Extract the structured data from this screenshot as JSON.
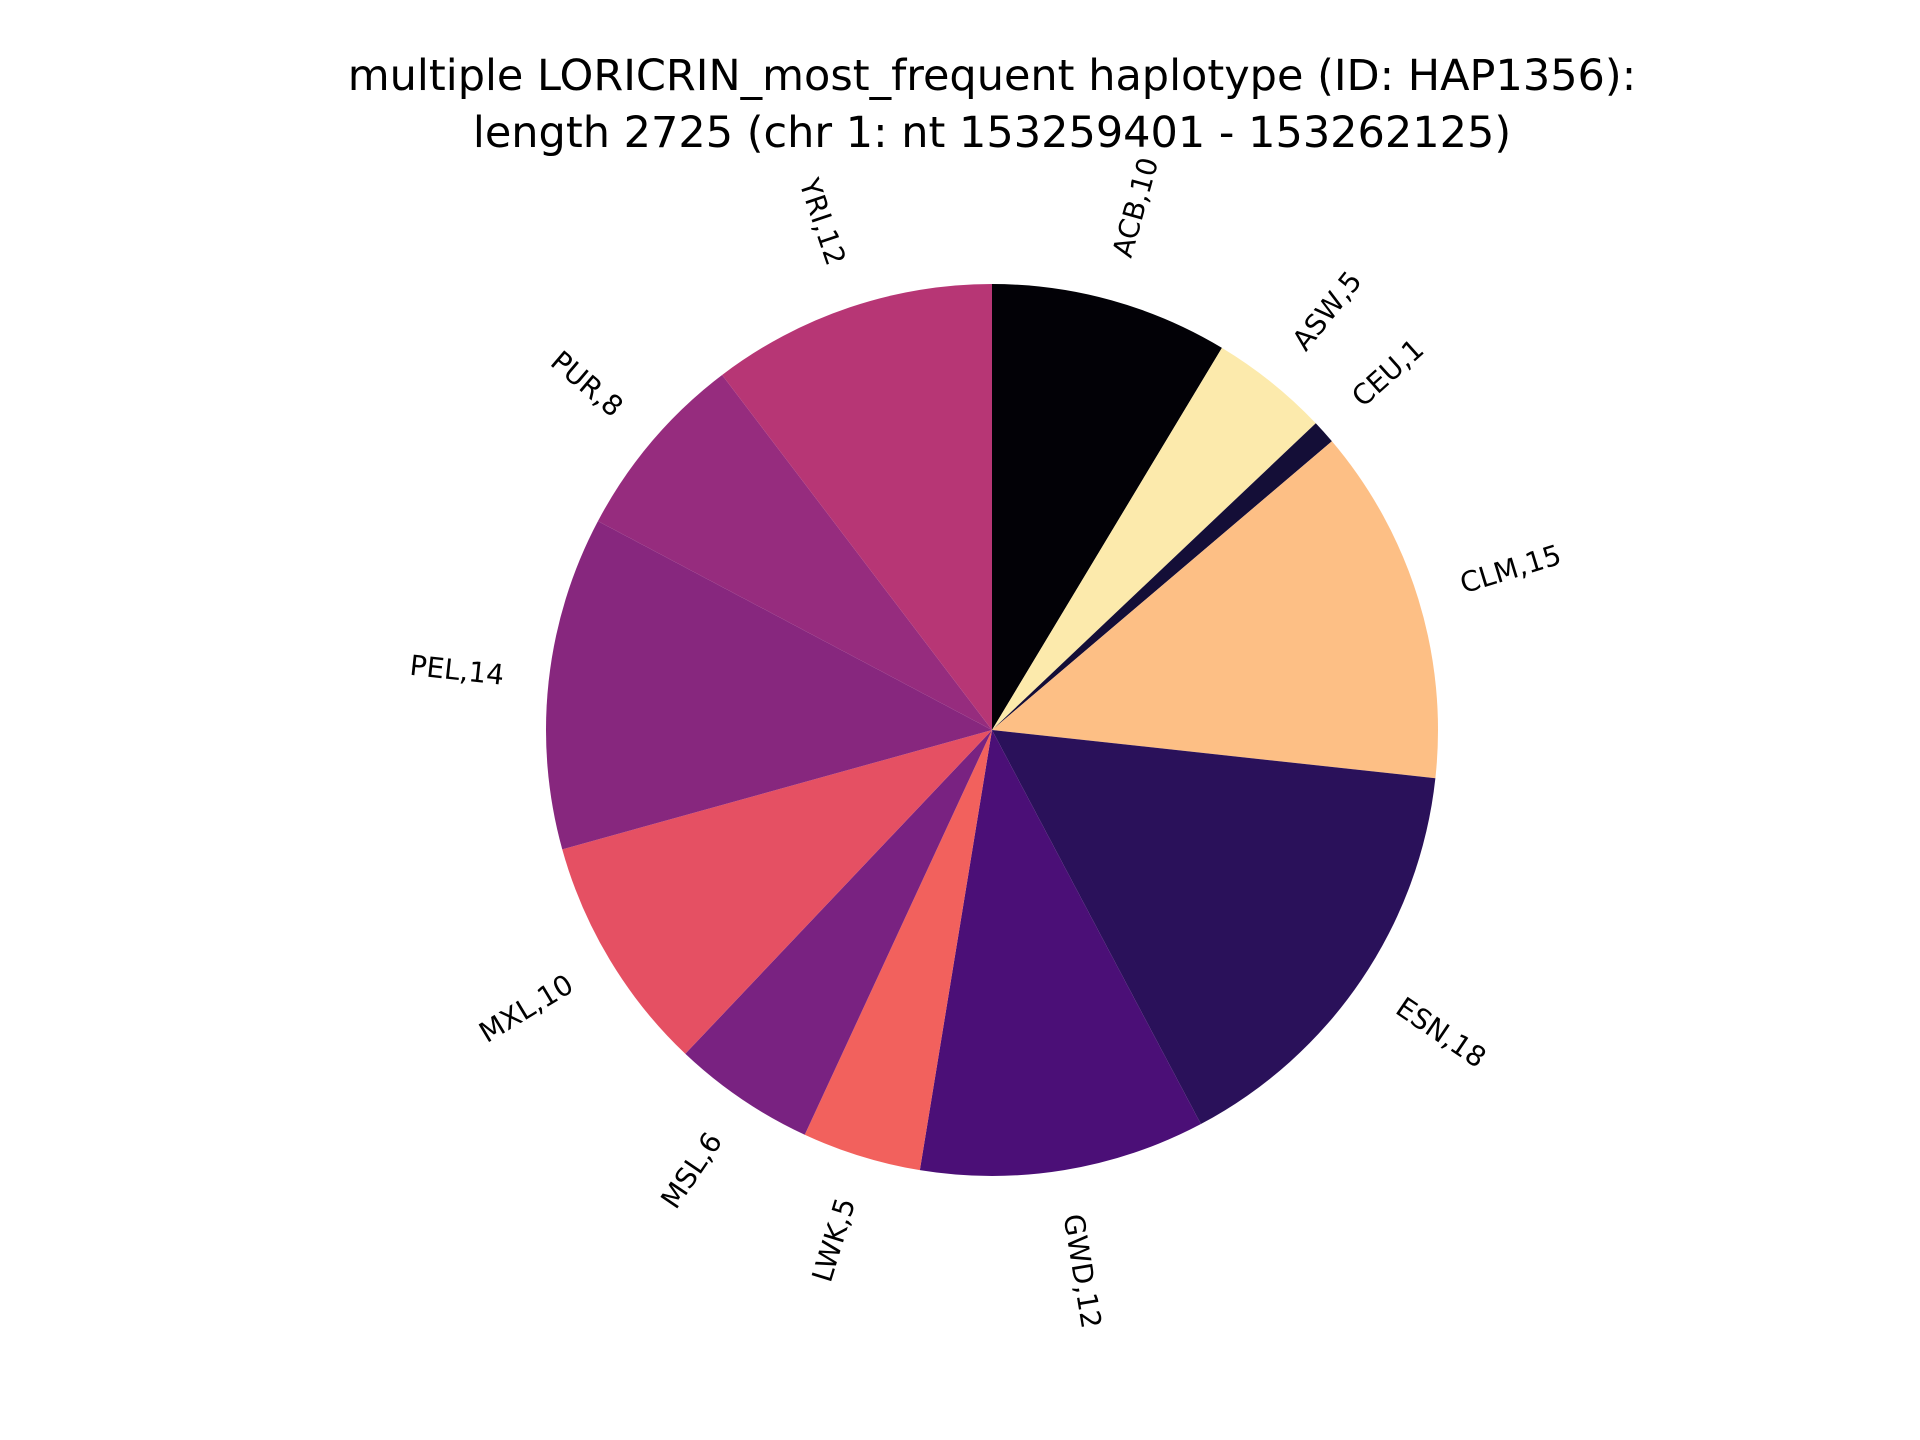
{
  "chart_data": {
    "type": "pie",
    "title_line1": "multiple LORICRIN_most_frequent haplotype (ID: HAP1356):",
    "title_line2": "length 2725 (chr 1: nt 153259401 - 153262125)",
    "start_angle": "top (12 o'clock)",
    "direction": "clockwise",
    "slices": [
      {
        "category": "ACB",
        "value": 10,
        "label": "ACB,10",
        "color": "#020106"
      },
      {
        "category": "ASW",
        "value": 5,
        "label": "ASW,5",
        "color": "#FCEAAC"
      },
      {
        "category": "CEU",
        "value": 1,
        "label": "CEU,1",
        "color": "#140E37"
      },
      {
        "category": "CLM",
        "value": 15,
        "label": "CLM,15",
        "color": "#FDBF85"
      },
      {
        "category": "ESN",
        "value": 18,
        "label": "ESN,18",
        "color": "#2A115A"
      },
      {
        "category": "GWD",
        "value": 12,
        "label": "GWD,12",
        "color": "#4B0F77"
      },
      {
        "category": "LWK",
        "value": 5,
        "label": "LWK,5",
        "color": "#F2615D"
      },
      {
        "category": "MSL",
        "value": 6,
        "label": "MSL,6",
        "color": "#792281"
      },
      {
        "category": "MXL",
        "value": 10,
        "label": "MXL,10",
        "color": "#E55063"
      },
      {
        "category": "PEL",
        "value": 14,
        "label": "PEL,14",
        "color": "#87277E"
      },
      {
        "category": "PUR",
        "value": 8,
        "label": "PUR,8",
        "color": "#962C7E"
      },
      {
        "category": "YRI",
        "value": 12,
        "label": "YRI,12",
        "color": "#B73675"
      }
    ]
  }
}
